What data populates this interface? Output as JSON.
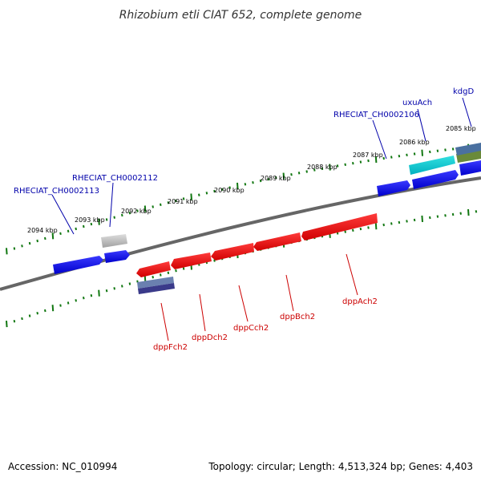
{
  "title": "Rhizobium etli CIAT 652, complete genome",
  "footer": {
    "accession": "Accession: NC_010994",
    "topology": "Topology: circular; Length: 4,513,324 bp; Genes: 4,403"
  },
  "colors": {
    "backbone": "#666666",
    "tick": "#117711",
    "forward_label": "#0000aa",
    "reverse_label": "#cc0000"
  },
  "kbp_labels": [
    "2085 kbp",
    "2086 kbp",
    "2087 kbp",
    "2088 kbp",
    "2089 kbp",
    "2090 kbp",
    "2091 kbp",
    "2092 kbp",
    "2093 kbp",
    "2094 kbp"
  ],
  "forward_genes": [
    "kdgD",
    "uxuAch",
    "RHECIAT_CH0002106",
    "RHECIAT_CH0002112",
    "RHECIAT_CH0002113"
  ],
  "reverse_genes": [
    "dppAch2",
    "dppBch2",
    "dppCch2",
    "dppDch2",
    "dppFch2"
  ]
}
